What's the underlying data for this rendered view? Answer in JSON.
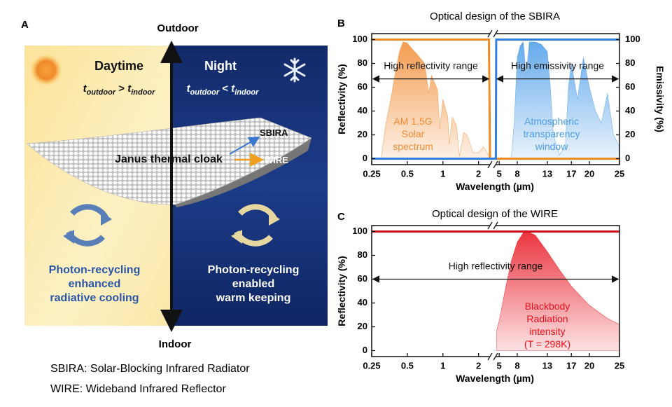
{
  "panel_a": {
    "label": "A",
    "top_label": "Outdoor",
    "bottom_label": "Indoor",
    "day": {
      "title": "Daytime",
      "condition": {
        "lhs": "t",
        "lhs_sub": "outdoor",
        "op": " > ",
        "rhs": "t",
        "rhs_sub": "indoor"
      }
    },
    "night": {
      "title": "Night",
      "condition": {
        "lhs": "t",
        "lhs_sub": "outdoor",
        "op": " < ",
        "rhs": "t",
        "rhs_sub": "indoor"
      }
    },
    "cloak": "Janus thermal cloak",
    "sbira": "SBIRA",
    "wire": "WIRE",
    "day_caption": [
      "Photon-recycling",
      "enhanced",
      "radiative cooling"
    ],
    "night_caption": [
      "Photon-recycling",
      "enabled",
      "warm keeping"
    ],
    "legend": [
      "SBIRA: Solar-Blocking Infrared Radiator",
      "WIRE: Wideband Infrared Reflector"
    ]
  },
  "chart_data": [
    {
      "type": "line",
      "panel_label": "B",
      "title": "Optical design of the SBIRA",
      "x_label": "Wavelength (µm)",
      "y_label": "Reflectivity (%)",
      "y2_label": "Emissivity (%)",
      "x_segments": [
        {
          "xlim": [
            0.25,
            2.5
          ],
          "xticks": [
            0.25,
            0.5,
            1,
            2
          ],
          "log": true
        },
        {
          "xlim": [
            4.4,
            25
          ],
          "xticks": [
            5,
            8,
            13,
            17,
            20,
            25
          ],
          "log": false
        }
      ],
      "ylim": [
        -5,
        105
      ],
      "yticks": [
        0,
        20,
        40,
        60,
        80,
        100
      ],
      "y2lim": [
        -5,
        105
      ],
      "y2ticks": [
        0,
        20,
        40,
        60,
        80,
        100
      ],
      "series": [
        {
          "kind": "area",
          "color": "#f28a30",
          "label": [
            "AM 1.5G",
            "Solar",
            "spectrum"
          ],
          "x": [
            0.3,
            0.33,
            0.37,
            0.4,
            0.43,
            0.46,
            0.5,
            0.55,
            0.6,
            0.7,
            0.76,
            0.8,
            0.9,
            0.94,
            1.0,
            1.1,
            1.13,
            1.2,
            1.3,
            1.38,
            1.5,
            1.6,
            1.8,
            2.0,
            2.2,
            2.4,
            2.5
          ],
          "values": [
            0,
            30,
            55,
            75,
            90,
            98,
            97,
            92,
            88,
            80,
            55,
            70,
            58,
            25,
            50,
            35,
            12,
            35,
            28,
            2,
            22,
            20,
            5,
            5,
            10,
            4,
            0
          ]
        },
        {
          "kind": "area",
          "color": "#4a9be8",
          "axis": "y2",
          "label": [
            "Atmospheric",
            "transparency",
            "window"
          ],
          "x": [
            7.0,
            7.5,
            8,
            8.5,
            9,
            9.5,
            10,
            11,
            12,
            13,
            13.5,
            14,
            15,
            16,
            16.5,
            17,
            18,
            19,
            20,
            21,
            22,
            23,
            24,
            25
          ],
          "values": [
            0,
            30,
            85,
            95,
            98,
            70,
            98,
            98,
            96,
            90,
            60,
            20,
            3,
            10,
            60,
            80,
            50,
            85,
            60,
            40,
            30,
            55,
            20,
            10
          ]
        },
        {
          "kind": "line",
          "color": "#f08a24",
          "x": [
            0.25,
            2.45,
            2.5,
            25
          ],
          "values": [
            100,
            100,
            0,
            0
          ]
        },
        {
          "kind": "line",
          "color": "#2f7fe0",
          "axis": "y2",
          "x": [
            0.25,
            2.5,
            4.45,
            4.5,
            25
          ],
          "values": [
            0,
            0,
            0,
            100,
            100
          ]
        }
      ],
      "annotations": [
        {
          "text": "High reflectivity range",
          "x": [
            0.25,
            2.5
          ],
          "y": 67
        },
        {
          "text": "High emissivity range",
          "x": [
            4.4,
            25
          ],
          "y": 67
        }
      ]
    },
    {
      "type": "line",
      "panel_label": "C",
      "title": "Optical design of the WIRE",
      "x_label": "Wavelength (µm)",
      "y_label": "Reflectivity (%)",
      "x_segments": [
        {
          "xlim": [
            0.25,
            2.5
          ],
          "xticks": [
            0.25,
            0.5,
            1,
            2
          ],
          "log": true
        },
        {
          "xlim": [
            4.4,
            25
          ],
          "xticks": [
            5,
            8,
            13,
            17,
            20,
            25
          ],
          "log": false
        }
      ],
      "ylim": [
        -5,
        105
      ],
      "yticks": [
        0,
        20,
        40,
        60,
        80,
        100
      ],
      "series": [
        {
          "kind": "area",
          "color": "#e8101c",
          "label": [
            "Blackbody",
            "Radiation",
            "intensity",
            "(T = 298K)"
          ],
          "x": [
            4.6,
            5,
            6,
            7,
            8,
            9,
            9.7,
            11,
            13,
            15,
            17,
            20,
            23,
            25
          ],
          "values": [
            17,
            25,
            51,
            75,
            91,
            99,
            100,
            97,
            83,
            68,
            54,
            38,
            27,
            22
          ]
        },
        {
          "kind": "line",
          "color": "#c8101a",
          "x": [
            0.25,
            25
          ],
          "values": [
            100,
            100
          ]
        }
      ],
      "annotations": [
        {
          "text": "High reflectivity range",
          "x": [
            0.25,
            25
          ],
          "y": 60
        }
      ]
    }
  ]
}
